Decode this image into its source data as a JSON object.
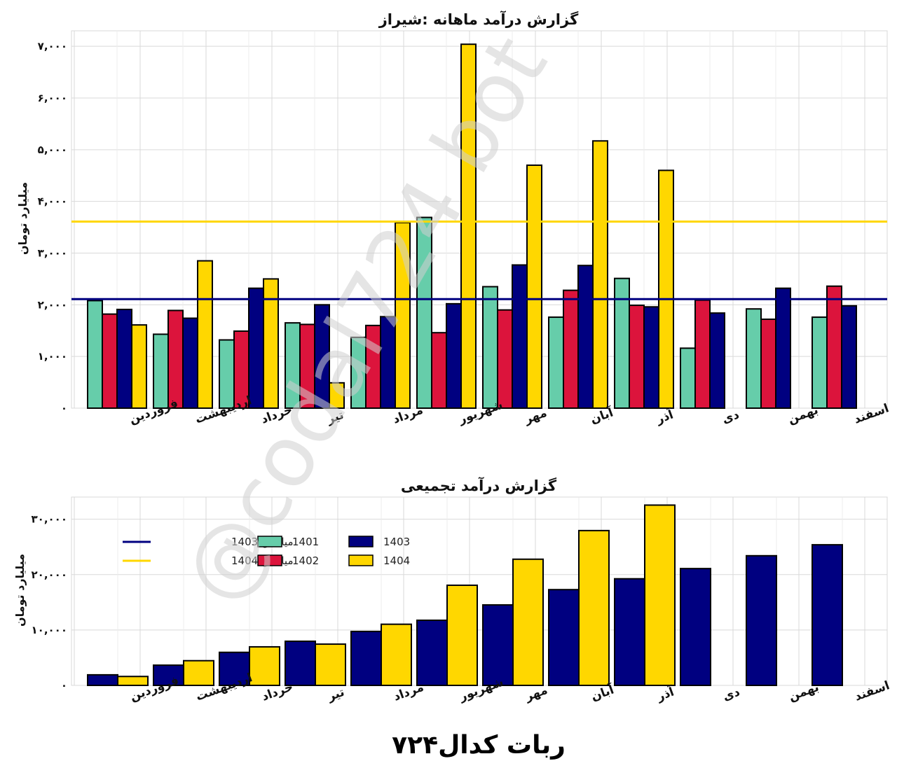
{
  "footer": "ربات کدال۷۲۴",
  "watermark": "@codal724 bot",
  "colors": {
    "c1401": "#66CDAA",
    "c1402": "#DC143C",
    "c1403": "#000080",
    "c1404": "#FFD700",
    "grid": "#d9d9d9"
  },
  "chart_data": [
    {
      "type": "bar",
      "title": "گزارش درآمد ماهانه :شیراز",
      "ylabel": "میلیارد تومان",
      "ylim": [
        0,
        7300
      ],
      "yticks": [
        0,
        1000,
        2000,
        3000,
        4000,
        5000,
        6000,
        7000
      ],
      "ytick_labels": [
        "۰",
        "۱,۰۰۰",
        "۲,۰۰۰",
        "۳,۰۰۰",
        "۴,۰۰۰",
        "۵,۰۰۰",
        "۶,۰۰۰",
        "۷,۰۰۰"
      ],
      "grid": true,
      "categories": [
        "فروردین",
        "اردیبهشت",
        "خرداد",
        "تیر",
        "مرداد",
        "شهریور",
        "مهر",
        "آبان",
        "آذر",
        "دی",
        "بهمن",
        "اسفند"
      ],
      "series": [
        {
          "name": "1401",
          "color": "#66CDAA",
          "values": [
            2080,
            1430,
            1320,
            1650,
            1370,
            3690,
            2350,
            1760,
            2510,
            1160,
            1920,
            1760
          ]
        },
        {
          "name": "1402",
          "color": "#DC143C",
          "values": [
            1820,
            1890,
            1490,
            1620,
            1600,
            1460,
            1900,
            2280,
            1990,
            2090,
            1720,
            2360
          ]
        },
        {
          "name": "1403",
          "color": "#000080",
          "values": [
            1910,
            1740,
            2320,
            2000,
            1770,
            2020,
            2770,
            2760,
            1960,
            1840,
            2320,
            1980
          ]
        },
        {
          "name": "1404",
          "color": "#FFD700",
          "values": [
            1610,
            2850,
            2500,
            490,
            3590,
            7040,
            4700,
            5170,
            4600,
            0,
            0,
            0
          ]
        }
      ],
      "hlines": [
        {
          "name": "میانگین 1403",
          "color": "#000080",
          "value": 2110
        },
        {
          "name": "میانگین 1404",
          "color": "#FFD700",
          "value": 3610
        }
      ]
    },
    {
      "type": "bar",
      "title": "گزارش درآمد تجمیعی",
      "ylabel": "میلیارد تومان",
      "ylim": [
        0,
        34000
      ],
      "yticks": [
        0,
        10000,
        20000,
        30000
      ],
      "ytick_labels": [
        "۰",
        "۱۰,۰۰۰",
        "۲۰,۰۰۰",
        "۳۰,۰۰۰"
      ],
      "grid": true,
      "legend_position": "top-left",
      "categories": [
        "فروردین",
        "اردیبهشت",
        "خرداد",
        "تیر",
        "مرداد",
        "شهریور",
        "مهر",
        "آبان",
        "آذر",
        "دی",
        "بهمن",
        "اسفند"
      ],
      "series": [
        {
          "name": "1403",
          "color": "#000080",
          "values": [
            1910,
            3650,
            5970,
            7970,
            9740,
            11760,
            14530,
            17290,
            19250,
            21090,
            23410,
            25390
          ]
        },
        {
          "name": "1404",
          "color": "#FFD700",
          "values": [
            1610,
            4460,
            6960,
            7450,
            11040,
            18080,
            22780,
            27950,
            32550,
            0,
            0,
            0
          ]
        }
      ],
      "legend": {
        "lines": [
          {
            "label": "میانگین 1403",
            "color": "#000080"
          },
          {
            "label": "میانگین 1404",
            "color": "#FFD700"
          }
        ],
        "boxes": [
          {
            "label": "1401",
            "color": "#66CDAA"
          },
          {
            "label": "1402",
            "color": "#DC143C"
          },
          {
            "label": "1403",
            "color": "#000080"
          },
          {
            "label": "1404",
            "color": "#FFD700"
          }
        ]
      }
    }
  ]
}
